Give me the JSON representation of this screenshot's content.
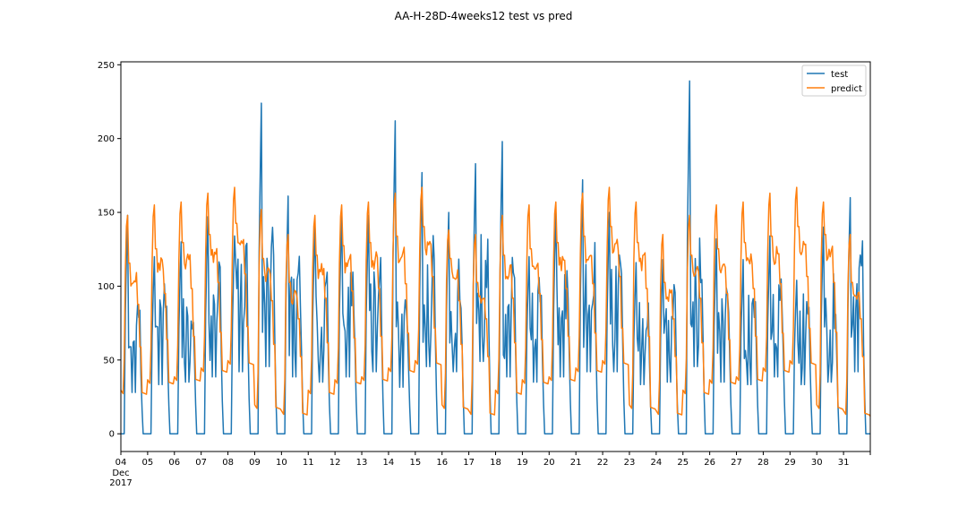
{
  "chart_data": {
    "type": "line",
    "title": "AA-H-28D-4weeks12 test vs pred",
    "xlabel": "",
    "ylabel": "",
    "x_range": [
      "2017-12-04",
      "2018-01-01"
    ],
    "ylim": [
      -12,
      252
    ],
    "yticks": [
      0,
      50,
      100,
      150,
      200,
      250
    ],
    "xticks": [
      {
        "date": "2017-12-04",
        "label": "04",
        "sub1": "Dec",
        "sub2": "2017"
      },
      {
        "date": "2017-12-05",
        "label": "05"
      },
      {
        "date": "2017-12-06",
        "label": "06"
      },
      {
        "date": "2017-12-07",
        "label": "07"
      },
      {
        "date": "2017-12-08",
        "label": "08"
      },
      {
        "date": "2017-12-09",
        "label": "09"
      },
      {
        "date": "2017-12-10",
        "label": "10"
      },
      {
        "date": "2017-12-11",
        "label": "11"
      },
      {
        "date": "2017-12-12",
        "label": "12"
      },
      {
        "date": "2017-12-13",
        "label": "13"
      },
      {
        "date": "2017-12-14",
        "label": "14"
      },
      {
        "date": "2017-12-15",
        "label": "15"
      },
      {
        "date": "2017-12-16",
        "label": "16"
      },
      {
        "date": "2017-12-17",
        "label": "17"
      },
      {
        "date": "2017-12-18",
        "label": "18"
      },
      {
        "date": "2017-12-19",
        "label": "19"
      },
      {
        "date": "2017-12-20",
        "label": "20"
      },
      {
        "date": "2017-12-21",
        "label": "21"
      },
      {
        "date": "2017-12-22",
        "label": "22"
      },
      {
        "date": "2017-12-23",
        "label": "23"
      },
      {
        "date": "2017-12-24",
        "label": "24"
      },
      {
        "date": "2017-12-25",
        "label": "25"
      },
      {
        "date": "2017-12-26",
        "label": "26"
      },
      {
        "date": "2017-12-27",
        "label": "27"
      },
      {
        "date": "2017-12-28",
        "label": "28"
      },
      {
        "date": "2017-12-29",
        "label": "29"
      },
      {
        "date": "2017-12-30",
        "label": "30"
      },
      {
        "date": "2017-12-31",
        "label": "31"
      },
      {
        "date": "2018-01-01",
        "label": ""
      }
    ],
    "grid": false,
    "legend_position": "top-right",
    "series": [
      {
        "name": "test",
        "color": "#1f77b4",
        "daily": [
          {
            "date": "2017-12-04",
            "peak": 148,
            "evening": 80,
            "base": 0
          },
          {
            "date": "2017-12-05",
            "peak": 120,
            "evening": 95,
            "base": 0
          },
          {
            "date": "2017-12-06",
            "peak": 130,
            "evening": 100,
            "base": 0
          },
          {
            "date": "2017-12-07",
            "peak": 147,
            "evening": 110,
            "base": 0
          },
          {
            "date": "2017-12-08",
            "peak": 134,
            "evening": 120,
            "base": 0
          },
          {
            "date": "2017-12-09",
            "peak": 224,
            "evening": 130,
            "base": 0
          },
          {
            "date": "2017-12-10",
            "peak": 161,
            "evening": 110,
            "base": 0
          },
          {
            "date": "2017-12-11",
            "peak": 142,
            "evening": 100,
            "base": 0
          },
          {
            "date": "2017-12-12",
            "peak": 150,
            "evening": 110,
            "base": 0
          },
          {
            "date": "2017-12-13",
            "peak": 148,
            "evening": 120,
            "base": 0
          },
          {
            "date": "2017-12-14",
            "peak": 212,
            "evening": 90,
            "base": 0
          },
          {
            "date": "2017-12-15",
            "peak": 177,
            "evening": 130,
            "base": 0
          },
          {
            "date": "2017-12-16",
            "peak": 150,
            "evening": 120,
            "base": 0
          },
          {
            "date": "2017-12-17",
            "peak": 183,
            "evening": 140,
            "base": 0
          },
          {
            "date": "2017-12-18",
            "peak": 198,
            "evening": 110,
            "base": 0
          },
          {
            "date": "2017-12-19",
            "peak": 120,
            "evening": 100,
            "base": 0
          },
          {
            "date": "2017-12-20",
            "peak": 150,
            "evening": 110,
            "base": 0
          },
          {
            "date": "2017-12-21",
            "peak": 172,
            "evening": 120,
            "base": 0
          },
          {
            "date": "2017-12-22",
            "peak": 150,
            "evening": 120,
            "base": 0
          },
          {
            "date": "2017-12-23",
            "peak": 116,
            "evening": 95,
            "base": 0
          },
          {
            "date": "2017-12-24",
            "peak": 118,
            "evening": 100,
            "base": 0
          },
          {
            "date": "2017-12-25",
            "peak": 239,
            "evening": 130,
            "base": 0
          },
          {
            "date": "2017-12-26",
            "peak": 132,
            "evening": 100,
            "base": 0
          },
          {
            "date": "2017-12-27",
            "peak": 118,
            "evening": 95,
            "base": 0
          },
          {
            "date": "2017-12-28",
            "peak": 134,
            "evening": 110,
            "base": 0
          },
          {
            "date": "2017-12-29",
            "peak": 104,
            "evening": 95,
            "base": 0
          },
          {
            "date": "2017-12-30",
            "peak": 140,
            "evening": 100,
            "base": 0
          },
          {
            "date": "2017-12-31",
            "peak": 160,
            "evening": 120,
            "base": 0
          }
        ]
      },
      {
        "name": "predict",
        "color": "#ff7f0e",
        "daily": [
          {
            "date": "2017-12-04",
            "peak": 148,
            "evening": 107,
            "base": 26
          },
          {
            "date": "2017-12-05",
            "peak": 155,
            "evening": 116,
            "base": 33
          },
          {
            "date": "2017-12-06",
            "peak": 157,
            "evening": 120,
            "base": 35
          },
          {
            "date": "2017-12-07",
            "peak": 163,
            "evening": 125,
            "base": 41
          },
          {
            "date": "2017-12-08",
            "peak": 167,
            "evening": 132,
            "base": 46
          },
          {
            "date": "2017-12-09",
            "peak": 152,
            "evening": 110,
            "base": 16
          },
          {
            "date": "2017-12-10",
            "peak": 135,
            "evening": 95,
            "base": 12
          },
          {
            "date": "2017-12-11",
            "peak": 148,
            "evening": 112,
            "base": 26
          },
          {
            "date": "2017-12-12",
            "peak": 155,
            "evening": 118,
            "base": 33
          },
          {
            "date": "2017-12-13",
            "peak": 157,
            "evening": 120,
            "base": 35
          },
          {
            "date": "2017-12-14",
            "peak": 163,
            "evening": 124,
            "base": 41
          },
          {
            "date": "2017-12-15",
            "peak": 167,
            "evening": 130,
            "base": 46
          },
          {
            "date": "2017-12-16",
            "peak": 138,
            "evening": 110,
            "base": 16
          },
          {
            "date": "2017-12-17",
            "peak": 135,
            "evening": 95,
            "base": 12
          },
          {
            "date": "2017-12-18",
            "peak": 148,
            "evening": 112,
            "base": 26
          },
          {
            "date": "2017-12-19",
            "peak": 155,
            "evening": 116,
            "base": 33
          },
          {
            "date": "2017-12-20",
            "peak": 157,
            "evening": 120,
            "base": 35
          },
          {
            "date": "2017-12-21",
            "peak": 163,
            "evening": 124,
            "base": 41
          },
          {
            "date": "2017-12-22",
            "peak": 167,
            "evening": 130,
            "base": 46
          },
          {
            "date": "2017-12-23",
            "peak": 157,
            "evening": 120,
            "base": 16
          },
          {
            "date": "2017-12-24",
            "peak": 135,
            "evening": 95,
            "base": 12
          },
          {
            "date": "2017-12-25",
            "peak": 148,
            "evening": 112,
            "base": 26
          },
          {
            "date": "2017-12-26",
            "peak": 155,
            "evening": 116,
            "base": 33
          },
          {
            "date": "2017-12-27",
            "peak": 157,
            "evening": 120,
            "base": 35
          },
          {
            "date": "2017-12-28",
            "peak": 163,
            "evening": 124,
            "base": 41
          },
          {
            "date": "2017-12-29",
            "peak": 167,
            "evening": 130,
            "base": 46
          },
          {
            "date": "2017-12-30",
            "peak": 157,
            "evening": 125,
            "base": 16
          },
          {
            "date": "2017-12-31",
            "peak": 135,
            "evening": 95,
            "base": 12
          }
        ]
      }
    ]
  }
}
